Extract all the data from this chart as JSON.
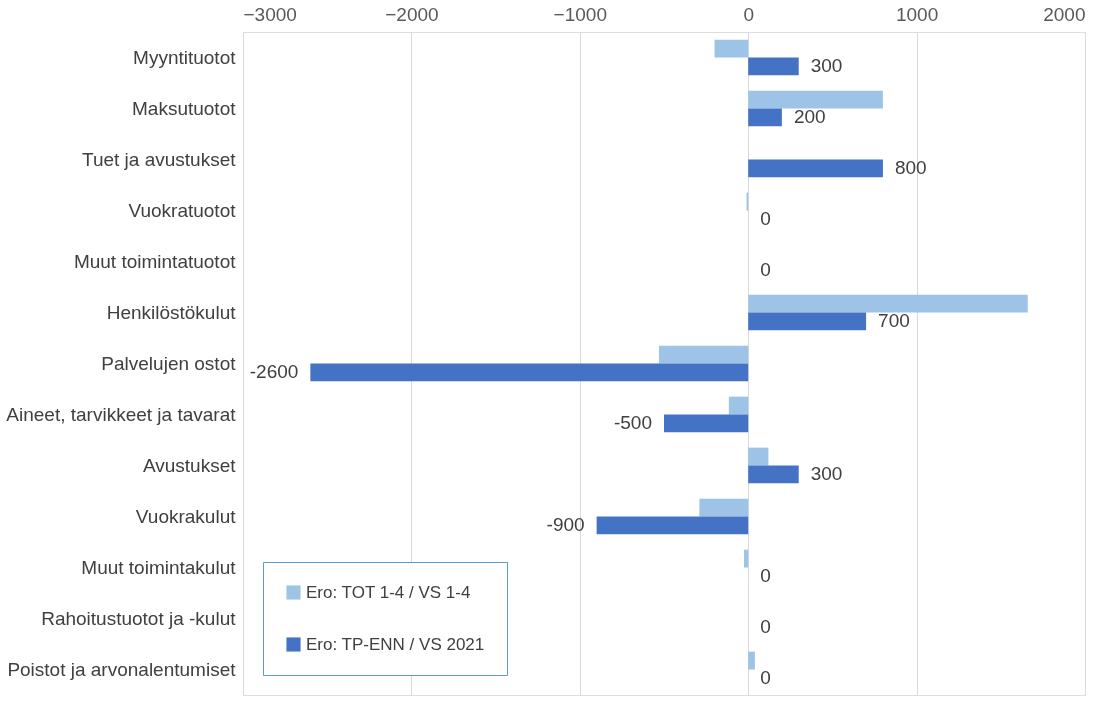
{
  "chart_data": {
    "type": "bar",
    "orientation": "horizontal",
    "categories": [
      "Myyntituotot",
      "Maksutuotot",
      "Tuet ja avustukset",
      "Vuokratuotot",
      "Muut toimintatuotot",
      "Henkilöstökulut",
      "Palvelujen ostot",
      "Aineet, tarvikkeet ja tavarat",
      "Avustukset",
      "Vuokrakulut",
      "Muut toimintakulut",
      "Rahoitustuotot ja -kulut",
      "Poistot ja arvonalentumiset"
    ],
    "series": [
      {
        "name": "Ero: TOT 1-4 / VS 1-4",
        "color": "#9dc3e6",
        "values": [
          -200,
          800,
          0,
          -10,
          0,
          1660,
          -530,
          -115,
          120,
          -290,
          -25,
          0,
          40
        ]
      },
      {
        "name": "Ero: TP-ENN / VS 2021",
        "color": "#4472c4",
        "values": [
          300,
          200,
          800,
          0,
          0,
          700,
          -2600,
          -500,
          300,
          -900,
          0,
          0,
          0
        ],
        "value_labels": [
          "300",
          "200",
          "800",
          "0",
          "0",
          "700",
          "-2600",
          "-500",
          "300",
          "-900",
          "0",
          "0",
          "0"
        ]
      }
    ],
    "xlim": [
      -3000,
      2000
    ],
    "xticks": [
      -3000,
      -2000,
      -1000,
      0,
      1000,
      2000
    ],
    "grid": "x",
    "legend": "bottom left"
  }
}
